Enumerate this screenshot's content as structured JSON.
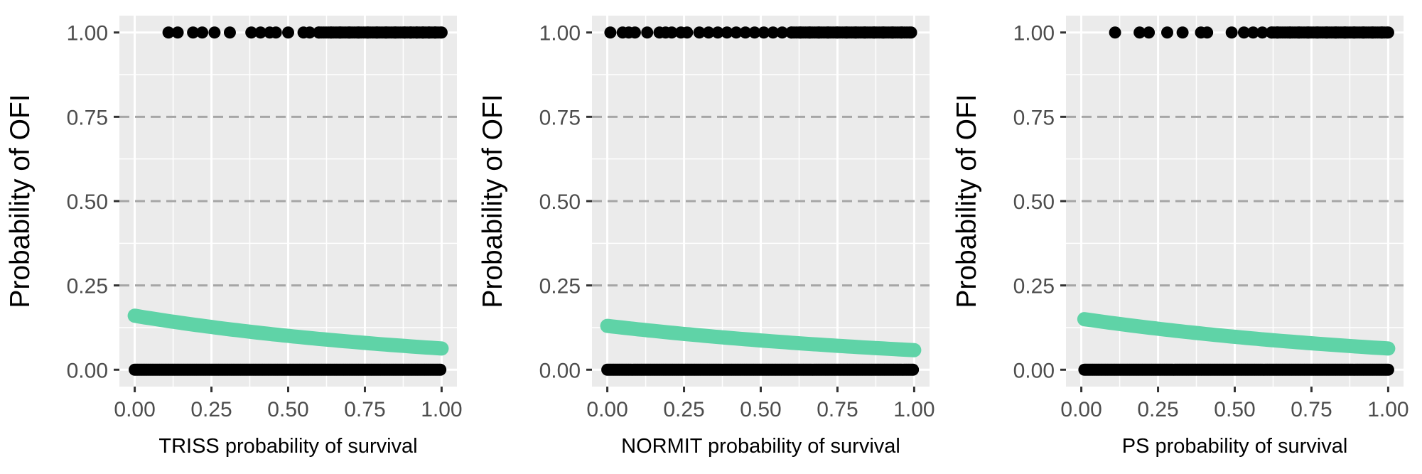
{
  "chart_data": [
    {
      "type": "scatter",
      "xlabel": "TRISS probability of survival",
      "ylabel": "Probability of OFI",
      "xlim": [
        -0.05,
        1.05
      ],
      "ylim": [
        -0.05,
        1.05
      ],
      "x_ticks": [
        "0.00",
        "0.25",
        "0.50",
        "0.75",
        "1.00"
      ],
      "y_ticks": [
        "0.00",
        "0.25",
        "0.50",
        "0.75",
        "1.00"
      ],
      "fit_curve": {
        "color": "#5fd3a7",
        "x_start": 0.0,
        "x_end": 1.0,
        "y_start": 0.16,
        "y_end": 0.063
      },
      "points_y1": {
        "color": "#000000",
        "x": [
          0.11,
          0.14,
          0.19,
          0.22,
          0.26,
          0.31,
          0.38,
          0.41,
          0.44,
          0.46,
          0.5,
          0.55,
          0.57,
          0.6,
          0.64,
          0.67,
          0.7,
          0.73,
          0.76,
          0.79,
          0.82,
          0.85,
          0.88,
          0.9,
          0.92,
          0.94,
          0.96,
          0.98,
          1.0
        ]
      },
      "points_y0": {
        "color": "#000000",
        "x_from": 0.0,
        "x_to": 1.0
      }
    },
    {
      "type": "scatter",
      "xlabel": "NORMIT probability of survival",
      "ylabel": "Probability of OFI",
      "xlim": [
        -0.05,
        1.05
      ],
      "ylim": [
        -0.05,
        1.05
      ],
      "x_ticks": [
        "0.00",
        "0.25",
        "0.50",
        "0.75",
        "1.00"
      ],
      "y_ticks": [
        "0.00",
        "0.25",
        "0.50",
        "0.75",
        "1.00"
      ],
      "fit_curve": {
        "color": "#5fd3a7",
        "x_start": 0.0,
        "x_end": 1.0,
        "y_start": 0.13,
        "y_end": 0.058
      },
      "points_y1": {
        "color": "#000000",
        "x": [
          0.01,
          0.05,
          0.07,
          0.09,
          0.13,
          0.17,
          0.19,
          0.21,
          0.24,
          0.26,
          0.3,
          0.33,
          0.36,
          0.39,
          0.42,
          0.45,
          0.48,
          0.51,
          0.54,
          0.57,
          0.6,
          0.63,
          0.66,
          0.69,
          0.72,
          0.75,
          0.78,
          0.81,
          0.84,
          0.87,
          0.9,
          0.93,
          0.96,
          0.99
        ]
      },
      "points_y0": {
        "color": "#000000",
        "x_from": 0.0,
        "x_to": 1.0
      }
    },
    {
      "type": "scatter",
      "xlabel": "PS probability of survival",
      "ylabel": "Probability of OFI",
      "xlim": [
        -0.05,
        1.05
      ],
      "ylim": [
        -0.05,
        1.05
      ],
      "x_ticks": [
        "0.00",
        "0.25",
        "0.50",
        "0.75",
        "1.00"
      ],
      "y_ticks": [
        "0.00",
        "0.25",
        "0.50",
        "0.75",
        "1.00"
      ],
      "fit_curve": {
        "color": "#5fd3a7",
        "x_start": 0.01,
        "x_end": 1.0,
        "y_start": 0.15,
        "y_end": 0.063
      },
      "points_y1": {
        "color": "#000000",
        "x": [
          0.11,
          0.19,
          0.22,
          0.28,
          0.33,
          0.39,
          0.41,
          0.49,
          0.53,
          0.56,
          0.59,
          0.62,
          0.64,
          0.68,
          0.71,
          0.74,
          0.77,
          0.8,
          0.83,
          0.86,
          0.89,
          0.92,
          0.95,
          0.98,
          1.0
        ]
      },
      "points_y0": {
        "color": "#000000",
        "x_from": 0.01,
        "x_to": 1.0
      }
    }
  ]
}
